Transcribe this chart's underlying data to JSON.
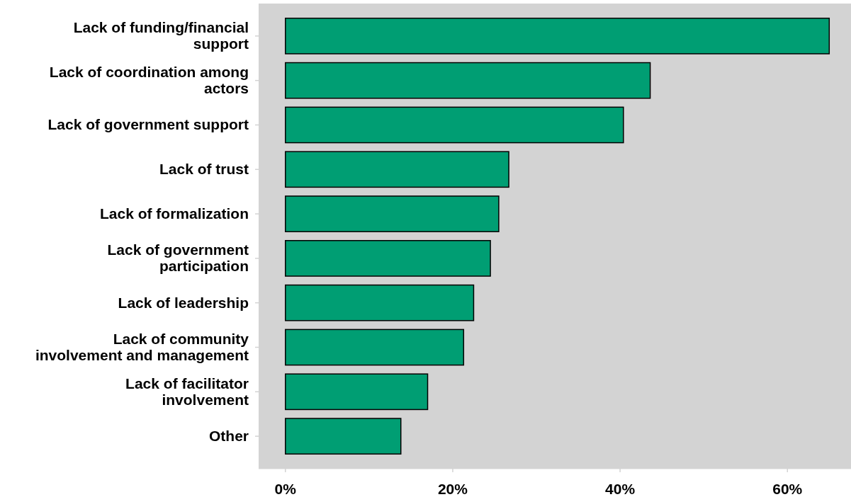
{
  "chart_data": {
    "type": "bar",
    "orientation": "horizontal",
    "categories": [
      "Lack of funding/financial\nsupport",
      "Lack of coordination among\nactors",
      "Lack of government support",
      "Lack of trust",
      "Lack of formalization",
      "Lack of government\nparticipation",
      "Lack of leadership",
      "Lack of community\ninvolvement and management",
      "Lack of facilitator\ninvolvement",
      "Other"
    ],
    "values": [
      65.0,
      43.6,
      40.4,
      26.7,
      25.5,
      24.5,
      22.5,
      21.3,
      17.0,
      13.8
    ],
    "color": "#009e73",
    "xlim": [
      -3.2,
      67.6
    ],
    "xticks": [
      {
        "value": 0,
        "label": "0%"
      },
      {
        "value": 20,
        "label": "20%"
      },
      {
        "value": 40,
        "label": "40%"
      },
      {
        "value": 60,
        "label": "60%"
      }
    ],
    "grid": false
  }
}
